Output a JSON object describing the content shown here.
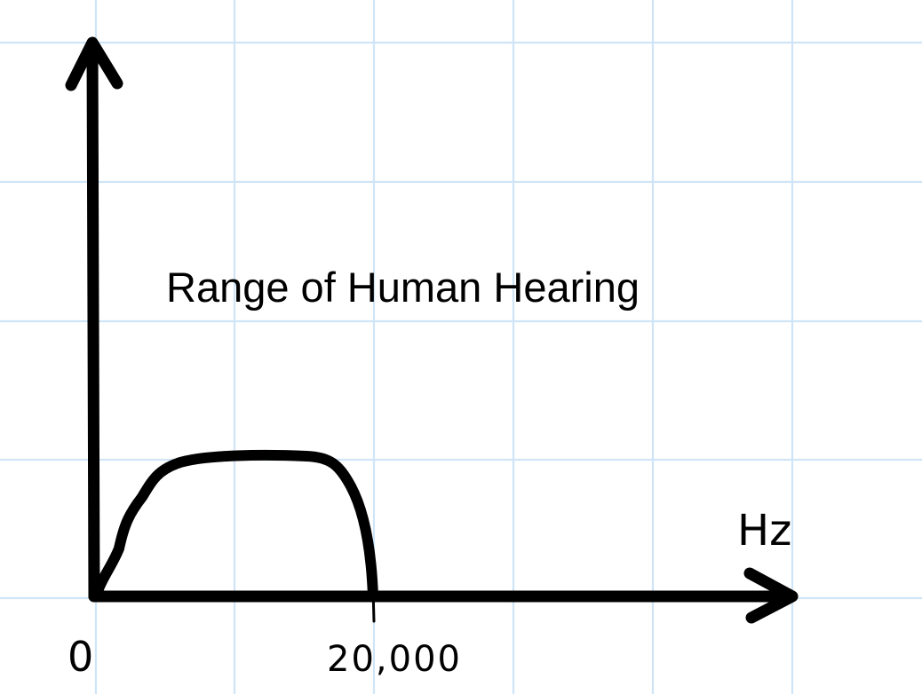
{
  "diagram": {
    "title": "Range of Human Hearing",
    "origin_label": "0",
    "x_tick_label": "20,000",
    "x_axis_label": "Hz",
    "colors": {
      "background": "#ffffff",
      "grid": "#cfe5f7",
      "ink": "#000000"
    }
  }
}
